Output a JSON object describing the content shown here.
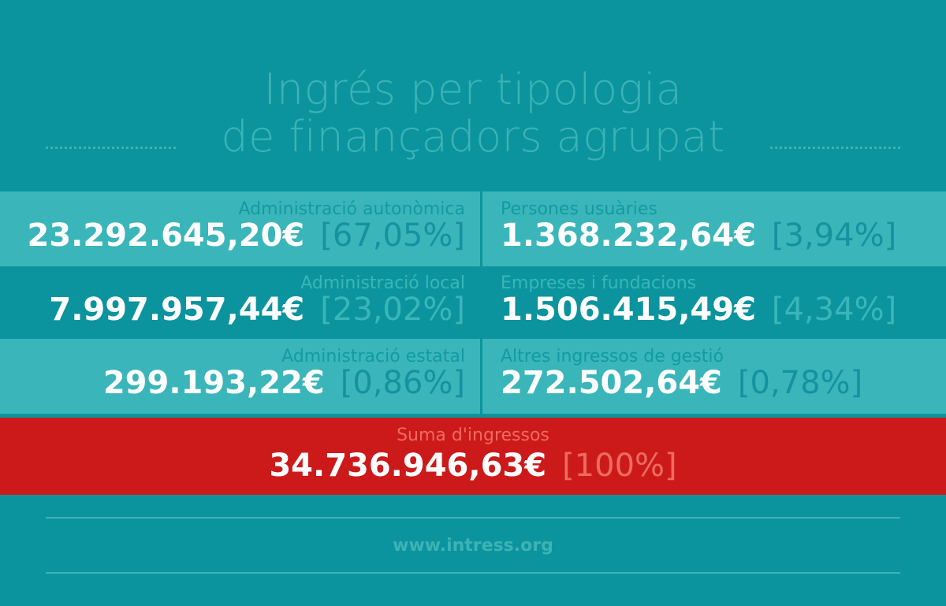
{
  "title": {
    "line1": "Ingrés per tipologia",
    "line2": "de finançadors agrupat"
  },
  "rows": [
    [
      {
        "label": "Administració autonòmica",
        "amount": "23.292.645,20€",
        "percent": "[67,05%]"
      },
      {
        "label": "Persones usuàries",
        "amount": "1.368.232,64€",
        "percent": "[3,94%]"
      }
    ],
    [
      {
        "label": "Administració local",
        "amount": "7.997.957,44€",
        "percent": "[23,02%]"
      },
      {
        "label": "Empreses i fundacions",
        "amount": "1.506.415,49€",
        "percent": "[4,34%]"
      }
    ],
    [
      {
        "label": "Administració estatal",
        "amount": "299.193,22€",
        "percent": "[0,86%]"
      },
      {
        "label": "Altres ingressos de gestió",
        "amount": "272.502,64€",
        "percent": "[0,78%]"
      }
    ]
  ],
  "total": {
    "label": "Suma d'ingressos",
    "amount": "34.736.946,63€",
    "percent": "[100%]"
  },
  "footer": {
    "url": "www.intress.org"
  }
}
